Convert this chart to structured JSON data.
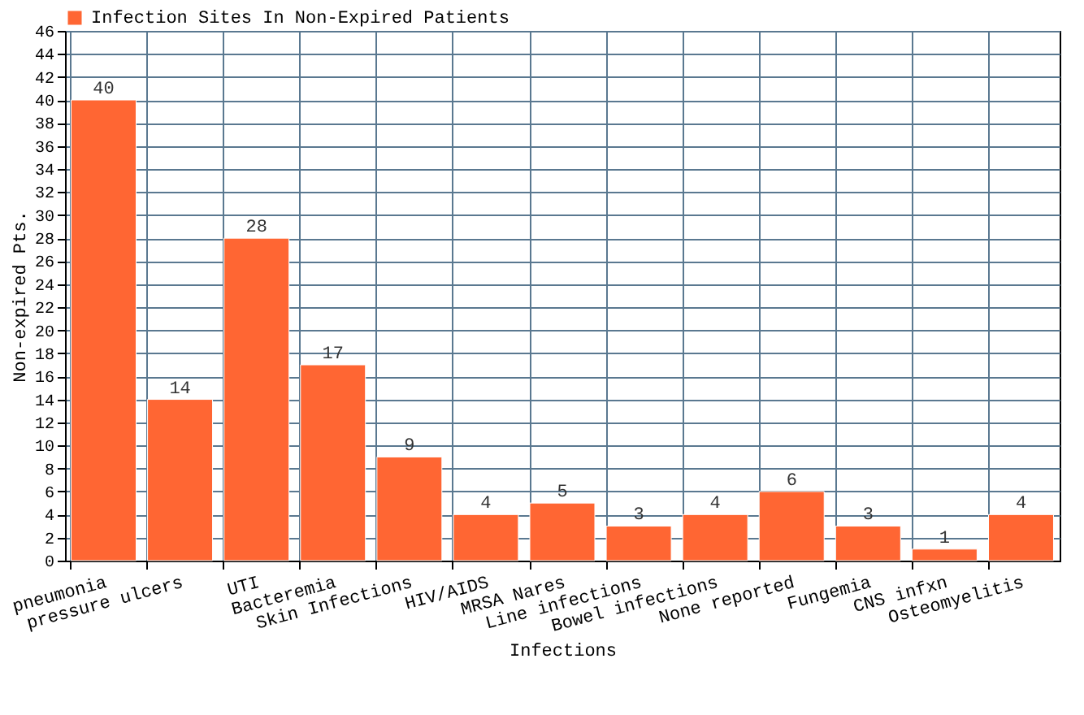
{
  "chart_data": {
    "type": "bar",
    "xlabel": "Infections",
    "ylabel": "Non-expired Pts.",
    "categories": [
      "pneumonia",
      "pressure ulcers",
      "UTI",
      "Bacteremia",
      "Skin Infections",
      "HIV/AIDS",
      "MRSA Nares",
      "Line infections",
      "Bowel infections",
      "None reported",
      "Fungemia",
      "CNS infxn",
      "Osteomyelitis"
    ],
    "series": [
      {
        "name": "Infection Sites In Non-Expired Patients",
        "color": "#ff6633",
        "values": [
          40,
          14,
          28,
          17,
          9,
          4,
          5,
          3,
          4,
          6,
          3,
          1,
          4
        ]
      }
    ],
    "ylim": [
      0,
      46
    ],
    "yticks": [
      0,
      2,
      4,
      6,
      8,
      10,
      12,
      14,
      16,
      18,
      20,
      22,
      24,
      26,
      28,
      30,
      32,
      34,
      36,
      38,
      40,
      42,
      44,
      46
    ],
    "grid": true,
    "legend": "top left",
    "data_labels": true
  }
}
